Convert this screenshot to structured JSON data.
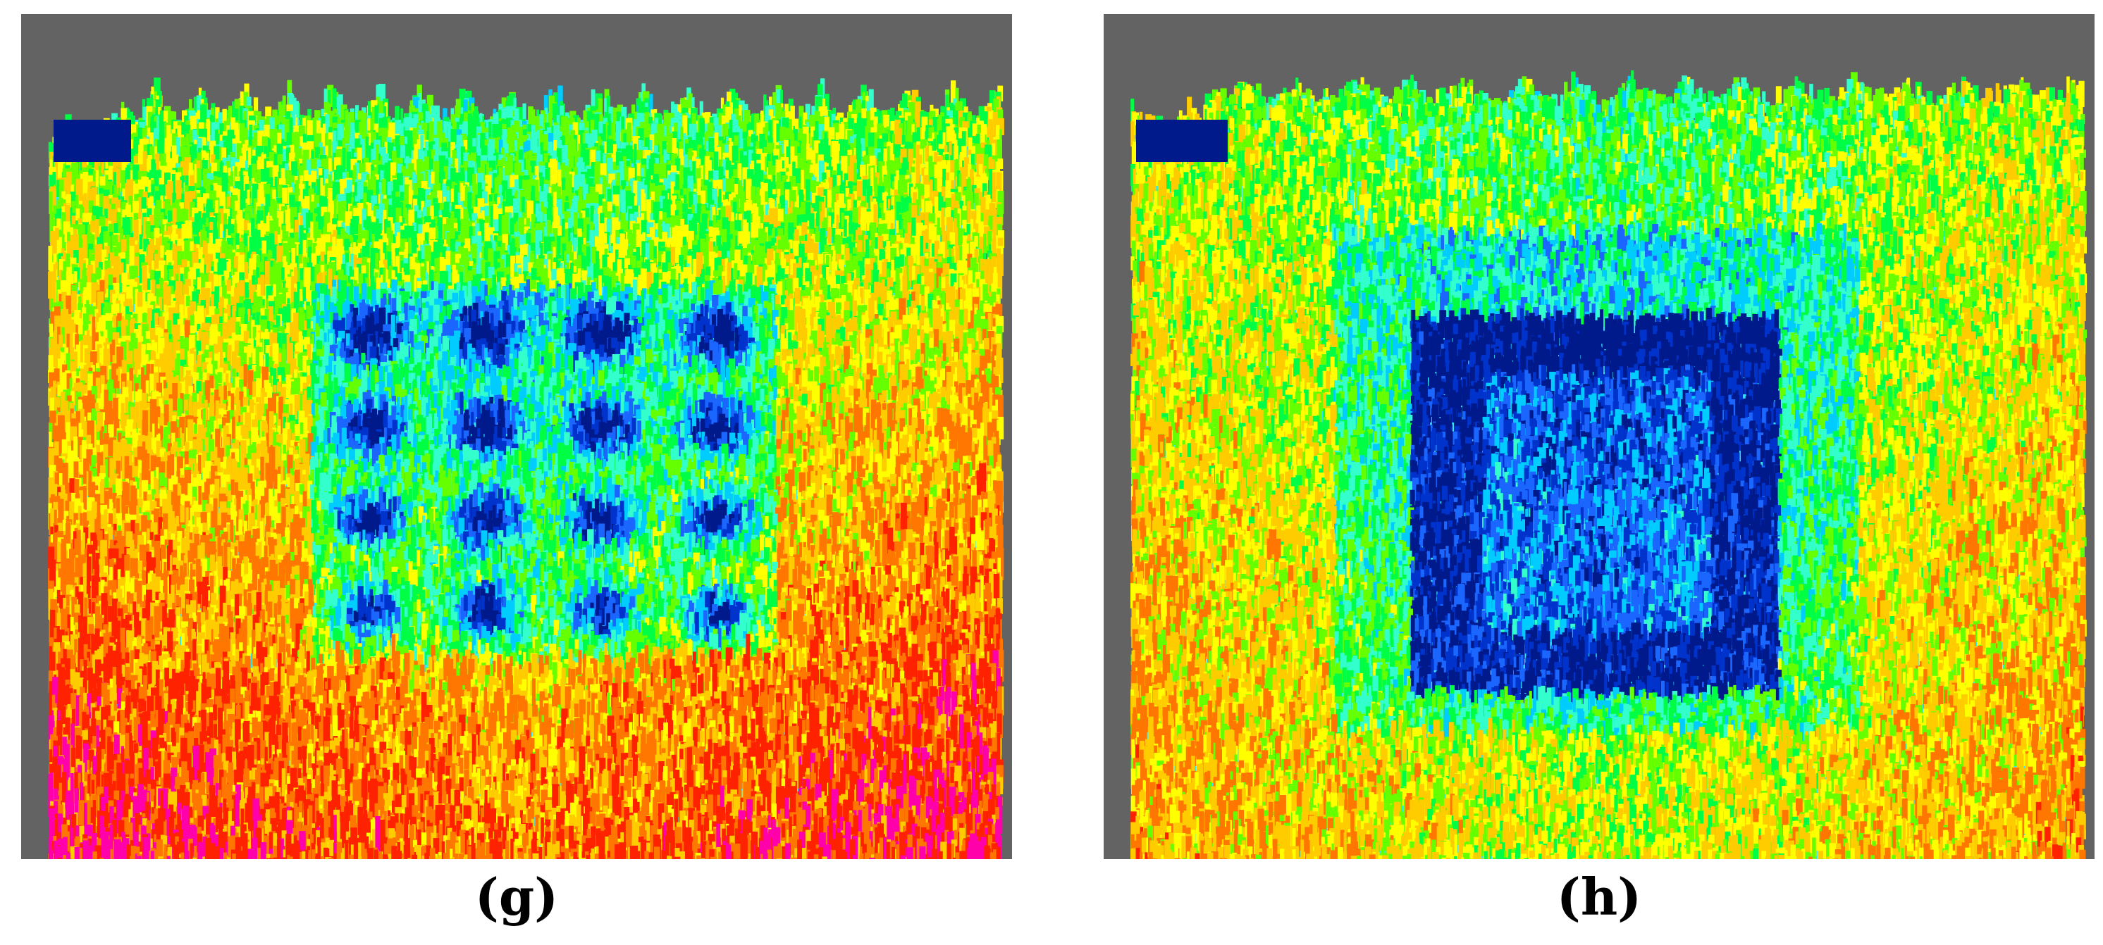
{
  "panels": [
    {
      "label": "(g)",
      "pattern": "dot-grid",
      "grid_rows": 4,
      "grid_cols": 4,
      "background_color": "#636363"
    },
    {
      "label": "(h)",
      "pattern": "hollow-square",
      "background_color": "#636363"
    }
  ],
  "colormap": [
    "#001a8c",
    "#0033cc",
    "#1a66ff",
    "#00ccff",
    "#33ffcc",
    "#00ff44",
    "#66ff00",
    "#ffff00",
    "#ffcc00",
    "#ff7700",
    "#ff2200",
    "#ff00aa"
  ]
}
